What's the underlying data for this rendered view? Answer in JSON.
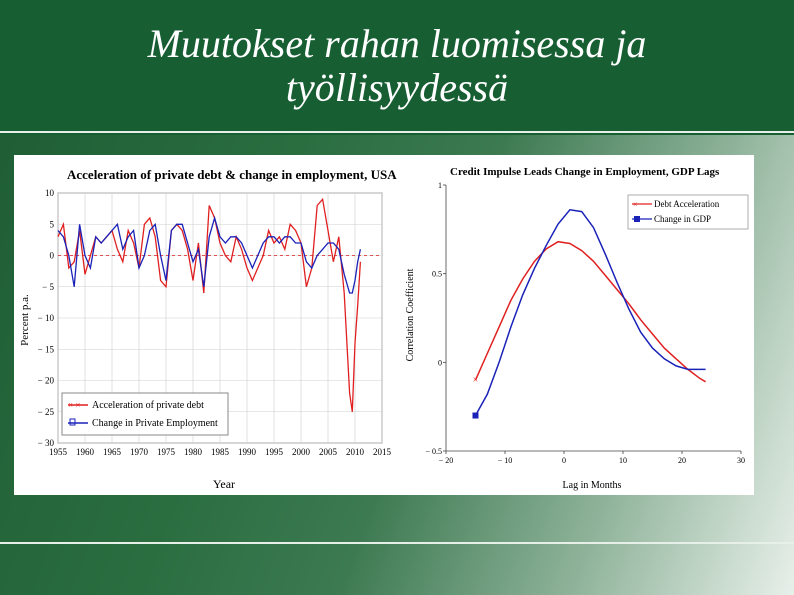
{
  "slide": {
    "title_line1": "Muutokset rahan luomisessa ja",
    "title_line2": "työllisyydessä"
  },
  "colors": {
    "header": "#175f33",
    "red": "#e02020",
    "blue": "#1a22b8"
  },
  "chart_data": [
    {
      "type": "line",
      "title": "Acceleration of private debt & change in employment, USA",
      "xlabel": "Year",
      "ylabel": "Percent p.a.",
      "xlim": [
        1955,
        2015
      ],
      "ylim": [
        -30,
        10
      ],
      "xticks": [
        1955,
        1960,
        1965,
        1970,
        1975,
        1980,
        1985,
        1990,
        1995,
        2000,
        2005,
        2010,
        2015
      ],
      "yticks": [
        10,
        5,
        0,
        -5,
        -10,
        -15,
        -20,
        -25,
        -30
      ],
      "grid": true,
      "legend": "bottom-left",
      "series": [
        {
          "name": "Acceleration of private debt",
          "color": "#e02020",
          "x": [
            1955,
            1956,
            1957,
            1958,
            1959,
            1960,
            1961,
            1962,
            1963,
            1964,
            1965,
            1966,
            1967,
            1968,
            1969,
            1970,
            1971,
            1972,
            1973,
            1974,
            1975,
            1976,
            1977,
            1978,
            1979,
            1980,
            1981,
            1982,
            1983,
            1984,
            1985,
            1986,
            1987,
            1988,
            1989,
            1990,
            1991,
            1992,
            1993,
            1994,
            1995,
            1996,
            1997,
            1998,
            1999,
            2000,
            2001,
            2002,
            2003,
            2004,
            2005,
            2006,
            2007,
            2008,
            2008.5,
            2009,
            2009.5,
            2010,
            2010.5,
            2011
          ],
          "y": [
            3,
            5,
            -2,
            -1,
            4,
            -3,
            0,
            3,
            2,
            3,
            4,
            1,
            -1,
            4,
            2,
            -2,
            5,
            6,
            3,
            -4,
            -5,
            4,
            5,
            4,
            1,
            -4,
            2,
            -6,
            8,
            6,
            2,
            0,
            -1,
            3,
            1,
            -2,
            -4,
            -2,
            0,
            4,
            2,
            3,
            1,
            5,
            4,
            2,
            -5,
            -2,
            8,
            9,
            4,
            -1,
            3,
            -6,
            -14,
            -22,
            -25,
            -14,
            -8,
            -1
          ]
        },
        {
          "name": "Change in Private Employment",
          "color": "#1a22b8",
          "x": [
            1955,
            1956,
            1957,
            1958,
            1959,
            1960,
            1961,
            1962,
            1963,
            1964,
            1965,
            1966,
            1967,
            1968,
            1969,
            1970,
            1971,
            1972,
            1973,
            1974,
            1975,
            1976,
            1977,
            1978,
            1979,
            1980,
            1981,
            1982,
            1983,
            1984,
            1985,
            1986,
            1987,
            1988,
            1989,
            1990,
            1991,
            1992,
            1993,
            1994,
            1995,
            1996,
            1997,
            1998,
            1999,
            2000,
            2001,
            2002,
            2003,
            2004,
            2005,
            2006,
            2007,
            2008,
            2009,
            2009.5,
            2010,
            2010.5,
            2011
          ],
          "y": [
            4,
            3,
            0,
            -5,
            5,
            0,
            -2,
            3,
            2,
            3,
            4,
            5,
            1,
            3,
            4,
            -2,
            0,
            4,
            5,
            0,
            -4,
            4,
            5,
            5,
            2,
            -1,
            1,
            -5,
            3,
            6,
            3,
            2,
            3,
            3,
            2,
            0,
            -2,
            0,
            2,
            3,
            3,
            2,
            3,
            3,
            2,
            2,
            -1,
            -2,
            0,
            1,
            2,
            2,
            1,
            -3,
            -6,
            -6,
            -4,
            -1,
            1
          ]
        }
      ]
    },
    {
      "type": "line",
      "title": "Credit Impulse Leads Change in Employment, GDP Lags",
      "xlabel": "Lag in Months",
      "ylabel": "Correlation Coefficient",
      "xlim": [
        -20,
        30
      ],
      "ylim": [
        -0.5,
        1
      ],
      "xticks": [
        -20,
        -10,
        0,
        10,
        20,
        30
      ],
      "yticks": [
        1,
        0.5,
        0,
        -0.5
      ],
      "grid": false,
      "legend": "top-right",
      "series": [
        {
          "name": "Debt Acceleration",
          "color": "#e02020",
          "x": [
            -15,
            -13,
            -11,
            -9,
            -7,
            -5,
            -3,
            -1,
            1,
            3,
            5,
            7,
            9,
            11,
            13,
            15,
            17,
            19,
            21,
            23,
            24
          ],
          "y": [
            -0.1,
            0.05,
            0.2,
            0.35,
            0.47,
            0.57,
            0.64,
            0.68,
            0.67,
            0.63,
            0.57,
            0.49,
            0.41,
            0.33,
            0.24,
            0.16,
            0.08,
            0.02,
            -0.04,
            -0.09,
            -0.11
          ]
        },
        {
          "name": "Change in GDP",
          "color": "#1a22b8",
          "x": [
            -15,
            -13,
            -11,
            -9,
            -7,
            -5,
            -3,
            -1,
            1,
            3,
            5,
            7,
            9,
            11,
            13,
            15,
            17,
            19,
            21,
            23,
            24
          ],
          "y": [
            -0.3,
            -0.18,
            0.0,
            0.2,
            0.38,
            0.53,
            0.66,
            0.78,
            0.86,
            0.85,
            0.76,
            0.61,
            0.45,
            0.3,
            0.17,
            0.08,
            0.02,
            -0.02,
            -0.04,
            -0.04,
            -0.04
          ]
        }
      ]
    }
  ]
}
